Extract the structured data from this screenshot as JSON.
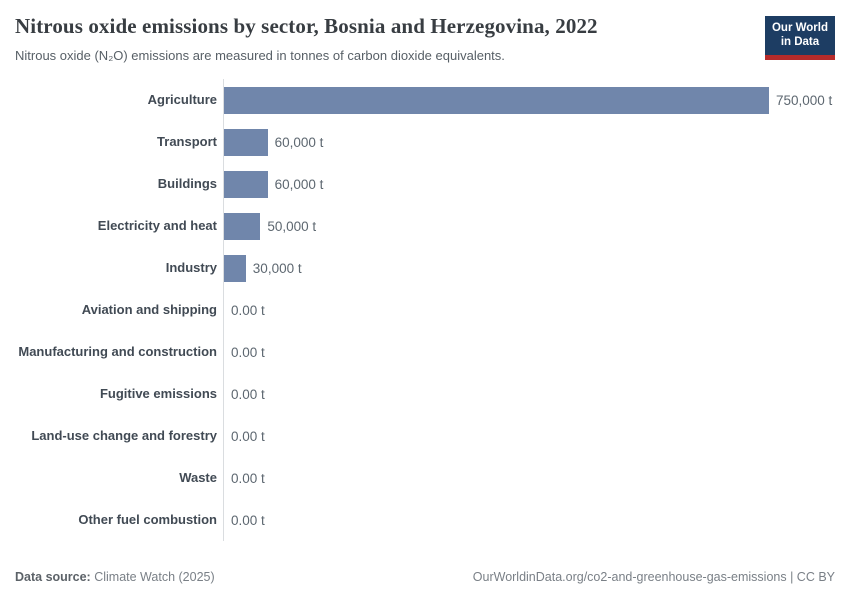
{
  "header": {
    "title": "Nitrous oxide emissions by sector, Bosnia and Herzegovina, 2022",
    "subtitle": "Nitrous oxide (N₂O) emissions are measured in tonnes of carbon dioxide equivalents.",
    "logo_text": "Our World\nin Data",
    "logo_bg_color": "#1d3d63",
    "logo_accent_color": "#b62b2b"
  },
  "chart_data": {
    "type": "bar",
    "orientation": "horizontal",
    "categories": [
      "Agriculture",
      "Transport",
      "Buildings",
      "Electricity and heat",
      "Industry",
      "Aviation and shipping",
      "Manufacturing and construction",
      "Fugitive emissions",
      "Land-use change and forestry",
      "Waste",
      "Other fuel combustion"
    ],
    "values": [
      750000,
      60000,
      60000,
      50000,
      30000,
      0,
      0,
      0,
      0,
      0,
      0
    ],
    "value_labels": [
      "750,000 t",
      "60,000 t",
      "60,000 t",
      "50,000 t",
      "30,000 t",
      "0.00 t",
      "0.00 t",
      "0.00 t",
      "0.00 t",
      "0.00 t",
      "0.00 t"
    ],
    "title": "Nitrous oxide emissions by sector, Bosnia and Herzegovina, 2022",
    "xlabel": "",
    "ylabel": "",
    "xlim": [
      0,
      750000
    ],
    "grid": false,
    "legend": false,
    "bar_color": "#7086ab",
    "unit": "t"
  },
  "footer": {
    "data_source_label": "Data source:",
    "data_source_value": "Climate Watch (2025)",
    "citation": "OurWorldinData.org/co2-and-greenhouse-gas-emissions | CC BY"
  }
}
